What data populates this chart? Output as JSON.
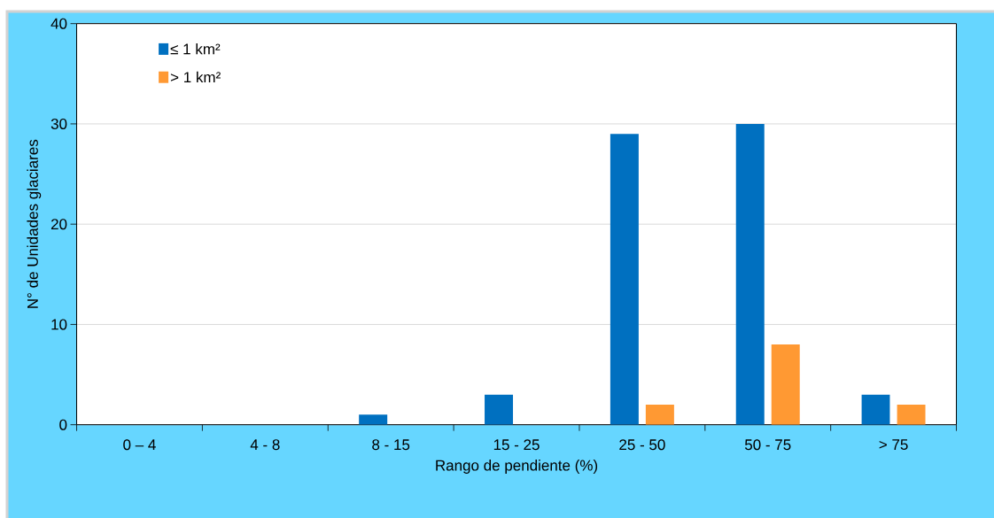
{
  "chart_data": {
    "type": "bar",
    "xlabel": "Rango de pendiente (%)",
    "ylabel": "N° de Unidades  glaciares",
    "categories": [
      "0 – 4",
      "4 - 8",
      "8 - 15",
      "15 - 25",
      "25 - 50",
      "50 - 75",
      "> 75"
    ],
    "series": [
      {
        "name": "≤ 1 km²",
        "color": "#0070c0",
        "values": [
          0,
          0,
          1,
          3,
          29,
          30,
          3
        ]
      },
      {
        "name": "> 1 km²",
        "color": "#ff9933",
        "values": [
          0,
          0,
          0,
          0,
          2,
          8,
          2
        ]
      }
    ],
    "ylim": [
      0,
      40
    ],
    "yticks": [
      0,
      10,
      20,
      30,
      40
    ],
    "grid": "y",
    "legend": "top left"
  }
}
